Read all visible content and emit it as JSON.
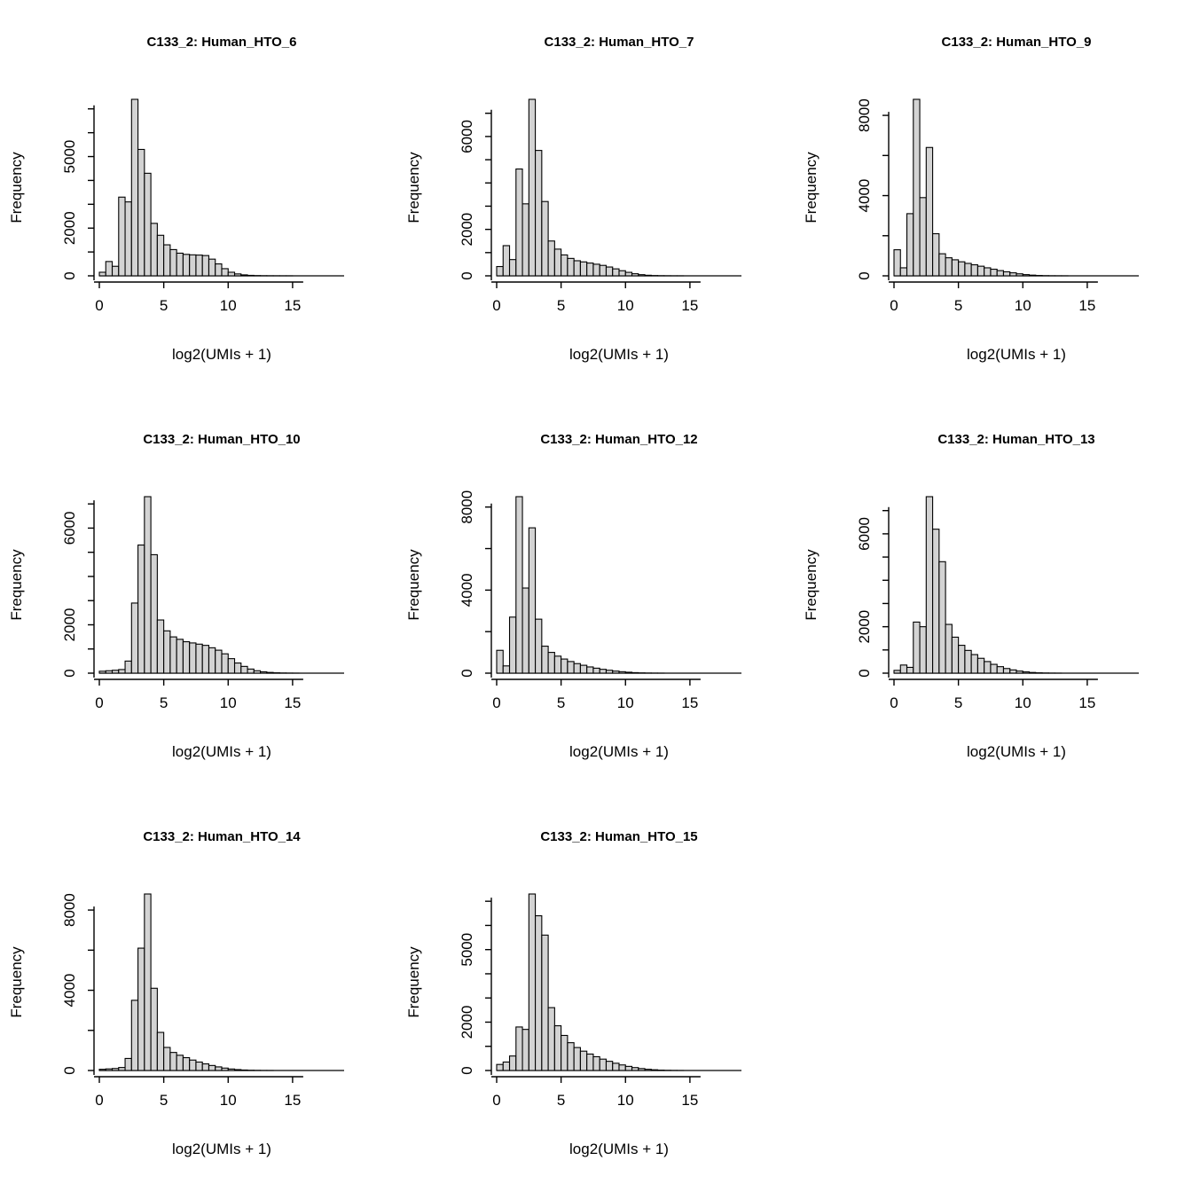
{
  "page": {
    "background": "#ffffff",
    "grid": {
      "rows": 3,
      "cols": 3,
      "filled_panels": 8
    }
  },
  "style": {
    "bar_fill": "#d3d3d3",
    "bar_stroke": "#000000",
    "axis_color": "#000000",
    "title_color": "#000000"
  },
  "shared": {
    "xlabel": "log2(UMIs + 1)",
    "ylabel": "Frequency",
    "xticks": [
      0,
      5,
      10,
      15
    ],
    "x_axis_max": 19,
    "bin_start": 0,
    "bin_width": 0.5
  },
  "chart_data": [
    {
      "type": "bar",
      "subtype": "histogram",
      "title": "C133_2: Human_HTO_6",
      "xlabel": "log2(UMIs + 1)",
      "ylabel": "Frequency",
      "xticks": [
        0,
        5,
        10,
        15
      ],
      "ytick_positions": [
        0,
        1000,
        2000,
        3000,
        4000,
        5000,
        6000,
        7000
      ],
      "ytick_labeled": [
        0,
        2000,
        5000
      ],
      "bin_start": 0,
      "bin_width": 0.5,
      "counts": [
        150,
        600,
        400,
        3300,
        3100,
        7400,
        5300,
        4300,
        2200,
        1700,
        1300,
        1100,
        950,
        900,
        880,
        870,
        850,
        700,
        500,
        300,
        150,
        80,
        40,
        20,
        10,
        5,
        3,
        2,
        1,
        1,
        0,
        0,
        0,
        0,
        0,
        0,
        0,
        0
      ]
    },
    {
      "type": "bar",
      "subtype": "histogram",
      "title": "C133_2: Human_HTO_7",
      "xlabel": "log2(UMIs + 1)",
      "ylabel": "Frequency",
      "xticks": [
        0,
        5,
        10,
        15
      ],
      "ytick_positions": [
        0,
        1000,
        2000,
        3000,
        4000,
        5000,
        6000,
        7000
      ],
      "ytick_labeled": [
        0,
        2000,
        6000
      ],
      "bin_start": 0,
      "bin_width": 0.5,
      "counts": [
        400,
        1300,
        700,
        4600,
        3100,
        7600,
        5400,
        3200,
        1500,
        1150,
        900,
        750,
        650,
        600,
        550,
        500,
        450,
        380,
        300,
        220,
        150,
        90,
        50,
        25,
        12,
        6,
        3,
        1,
        1,
        0,
        0,
        0,
        0,
        0,
        0,
        0,
        0,
        0
      ]
    },
    {
      "type": "bar",
      "subtype": "histogram",
      "title": "C133_2: Human_HTO_9",
      "xlabel": "log2(UMIs + 1)",
      "ylabel": "Frequency",
      "xticks": [
        0,
        5,
        10,
        15
      ],
      "ytick_positions": [
        0,
        2000,
        4000,
        6000,
        8000
      ],
      "ytick_labeled": [
        0,
        4000,
        8000
      ],
      "bin_start": 0,
      "bin_width": 0.5,
      "counts": [
        1300,
        400,
        3100,
        8800,
        3900,
        6400,
        2100,
        1100,
        900,
        800,
        700,
        620,
        550,
        480,
        400,
        330,
        260,
        200,
        150,
        100,
        60,
        35,
        18,
        8,
        4,
        2,
        1,
        0,
        0,
        0,
        0,
        0,
        0,
        0,
        0,
        0,
        0,
        0
      ]
    },
    {
      "type": "bar",
      "subtype": "histogram",
      "title": "C133_2: Human_HTO_10",
      "xlabel": "log2(UMIs + 1)",
      "ylabel": "Frequency",
      "xticks": [
        0,
        5,
        10,
        15
      ],
      "ytick_positions": [
        0,
        1000,
        2000,
        3000,
        4000,
        5000,
        6000,
        7000
      ],
      "ytick_labeled": [
        0,
        2000,
        6000
      ],
      "bin_start": 0,
      "bin_width": 0.5,
      "counts": [
        80,
        100,
        120,
        150,
        500,
        2900,
        5300,
        7300,
        4900,
        2200,
        1750,
        1500,
        1400,
        1300,
        1250,
        1200,
        1150,
        1050,
        950,
        800,
        600,
        420,
        280,
        170,
        100,
        55,
        30,
        15,
        7,
        3,
        1,
        0,
        0,
        0,
        0,
        0,
        0,
        0
      ]
    },
    {
      "type": "bar",
      "subtype": "histogram",
      "title": "C133_2: Human_HTO_12",
      "xlabel": "log2(UMIs + 1)",
      "ylabel": "Frequency",
      "xticks": [
        0,
        5,
        10,
        15
      ],
      "ytick_positions": [
        0,
        2000,
        4000,
        6000,
        8000
      ],
      "ytick_labeled": [
        0,
        4000,
        8000
      ],
      "bin_start": 0,
      "bin_width": 0.5,
      "counts": [
        1100,
        350,
        2700,
        8500,
        4100,
        7000,
        2600,
        1300,
        1000,
        820,
        680,
        560,
        460,
        380,
        300,
        240,
        185,
        140,
        100,
        70,
        45,
        25,
        13,
        6,
        3,
        1,
        0,
        0,
        0,
        0,
        0,
        0,
        0,
        0,
        0,
        0,
        0,
        0
      ]
    },
    {
      "type": "bar",
      "subtype": "histogram",
      "title": "C133_2: Human_HTO_13",
      "xlabel": "log2(UMIs + 1)",
      "ylabel": "Frequency",
      "xticks": [
        0,
        5,
        10,
        15
      ],
      "ytick_positions": [
        0,
        1000,
        2000,
        3000,
        4000,
        5000,
        6000,
        7000
      ],
      "ytick_labeled": [
        0,
        2000,
        6000
      ],
      "bin_start": 0,
      "bin_width": 0.5,
      "counts": [
        120,
        350,
        250,
        2200,
        2000,
        7600,
        6200,
        4800,
        2100,
        1550,
        1200,
        980,
        800,
        640,
        500,
        380,
        280,
        200,
        140,
        90,
        55,
        30,
        15,
        7,
        3,
        1,
        0,
        0,
        0,
        0,
        0,
        0,
        0,
        0,
        0,
        0,
        0,
        0
      ]
    },
    {
      "type": "bar",
      "subtype": "histogram",
      "title": "C133_2: Human_HTO_14",
      "xlabel": "log2(UMIs + 1)",
      "ylabel": "Frequency",
      "xticks": [
        0,
        5,
        10,
        15
      ],
      "ytick_positions": [
        0,
        2000,
        4000,
        6000,
        8000
      ],
      "ytick_labeled": [
        0,
        4000,
        8000
      ],
      "bin_start": 0,
      "bin_width": 0.5,
      "counts": [
        60,
        80,
        100,
        150,
        600,
        3500,
        6100,
        8800,
        4100,
        1900,
        1150,
        900,
        760,
        640,
        520,
        420,
        330,
        250,
        180,
        120,
        75,
        45,
        25,
        12,
        6,
        2,
        1,
        0,
        0,
        0,
        0,
        0,
        0,
        0,
        0,
        0,
        0,
        0
      ]
    },
    {
      "type": "bar",
      "subtype": "histogram",
      "title": "C133_2: Human_HTO_15",
      "xlabel": "log2(UMIs + 1)",
      "ylabel": "Frequency",
      "xticks": [
        0,
        5,
        10,
        15
      ],
      "ytick_positions": [
        0,
        1000,
        2000,
        3000,
        4000,
        5000,
        6000,
        7000
      ],
      "ytick_labeled": [
        0,
        2000,
        5000
      ],
      "bin_start": 0,
      "bin_width": 0.5,
      "counts": [
        250,
        350,
        600,
        1800,
        1700,
        7300,
        6400,
        5600,
        2600,
        1850,
        1450,
        1150,
        950,
        800,
        680,
        570,
        470,
        380,
        300,
        230,
        170,
        120,
        80,
        50,
        30,
        15,
        7,
        3,
        1,
        0,
        0,
        0,
        0,
        0,
        0,
        0,
        0,
        0
      ]
    }
  ]
}
